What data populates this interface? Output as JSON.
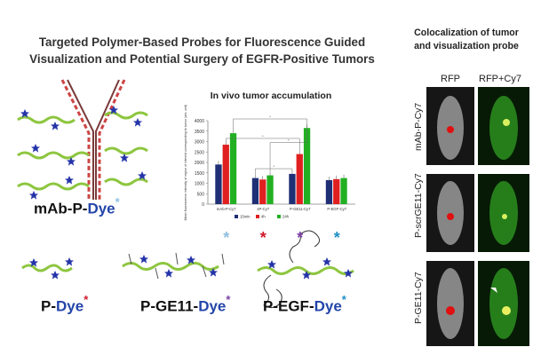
{
  "title_line1": "Targeted Polymer-Based Probes for Fluorescence Guided",
  "title_line2": "Visualization and Potential Surgery of EGFR-Positive Tumors",
  "coloc_title_line1": "Colocalization of tumor",
  "coloc_title_line2": "and visualization probe",
  "chart_title": "In vivo tumor accumulation",
  "probes": [
    {
      "prefix": "mAb-P-",
      "dye": "Dye",
      "marker": "*",
      "marker_color": "#8fbfe0"
    },
    {
      "prefix": "P-",
      "dye": "Dye",
      "marker": "*",
      "marker_color": "#d11a2a"
    },
    {
      "prefix": "P-GE11-",
      "dye": "Dye",
      "marker": "*",
      "marker_color": "#7b3fa5"
    },
    {
      "prefix": "P-EGF-",
      "dye": "Dye",
      "marker": "*",
      "marker_color": "#1e8fc8"
    }
  ],
  "image_panel": {
    "col_headers": [
      "RFP",
      "RFP+Cy7"
    ],
    "row_labels": [
      "mAb-P-Cy7",
      "P-scrGE11-Cy7",
      "P-GE11-Cy7"
    ]
  },
  "colors": {
    "series1": "#1f2f75",
    "series2": "#e02020",
    "series3": "#22b022",
    "polymer": "#8dc63f",
    "star": "#2434a8"
  },
  "chart_data": {
    "type": "bar",
    "title": "In vivo tumor accumulation",
    "ylabel": "Mean fluorescence intensity of region of interest corresponding to tumor (arb. unit)",
    "ylim": [
      0,
      4000
    ],
    "yticks": [
      0,
      500,
      1000,
      1500,
      2000,
      2500,
      3000,
      3500,
      4000
    ],
    "categories": [
      "mAb-P-Cy7",
      "sP-Cy7",
      "P-GE11-Cy7",
      "P-EGF-Cy7"
    ],
    "category_markers": [
      {
        "symbol": "*",
        "color": "#8fbfe0"
      },
      {
        "symbol": "*",
        "color": "#d11a2a"
      },
      {
        "symbol": "*",
        "color": "#7b3fa5"
      },
      {
        "symbol": "*",
        "color": "#1e8fc8"
      }
    ],
    "series": [
      {
        "name": "15min",
        "values": [
          1900,
          1250,
          1450,
          1150
        ],
        "color": "#1f2f75"
      },
      {
        "name": "4h",
        "values": [
          2850,
          1180,
          2400,
          1200
        ],
        "color": "#e02020"
      },
      {
        "name": "24h",
        "values": [
          3400,
          1380,
          3650,
          1250
        ],
        "color": "#22b022"
      }
    ],
    "significance_marker": "*",
    "legend_position": "bottom",
    "grid": false
  }
}
